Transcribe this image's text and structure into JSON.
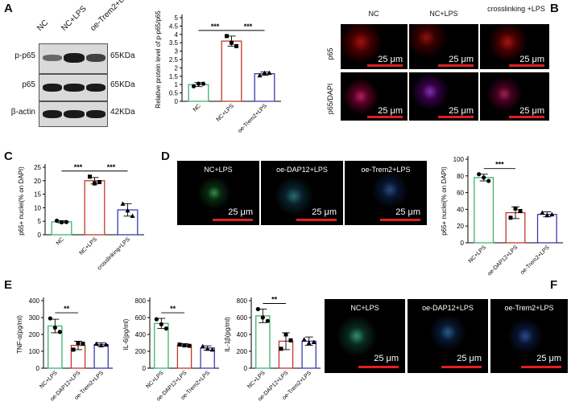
{
  "panels": {
    "A": {
      "letter": "A",
      "blot": {
        "lanes": [
          "NC",
          "NC+LPS",
          "oe-Trem2+LPS"
        ],
        "rows": [
          {
            "label": "p-p65",
            "kda": "65KDa"
          },
          {
            "label": "p65",
            "kda": "65KDa"
          },
          {
            "label": "β-actin",
            "kda": "42KDa"
          }
        ]
      }
    },
    "B": {
      "letter": "B",
      "columns": [
        "NC",
        "NC+LPS",
        "crosslinking +LPS"
      ],
      "rows": [
        "p65",
        "p65/DAPI"
      ],
      "scale": "25 μm"
    },
    "C": {
      "letter": "C"
    },
    "D": {
      "letter": "D",
      "images": [
        "NC+LPS",
        "oe-DAP12+LPS",
        "oe-Trem2+LPS"
      ],
      "scale": "25 μm"
    },
    "E": {
      "letter": "E"
    },
    "F": {
      "letter": "F",
      "images": [
        "NC+LPS",
        "oe-DAP12+LPS",
        "oe-Trem2+LPS"
      ],
      "scale": "25 μm"
    }
  },
  "colors": {
    "green": "#3cb371",
    "red": "#c0392b",
    "blue": "#3b3bb3",
    "scale": "#e02020"
  },
  "chart_data": [
    {
      "id": "A-bar",
      "type": "bar",
      "categories": [
        "NC",
        "NC+LPS",
        "oe-Trem2+LPS"
      ],
      "values": [
        1.0,
        3.6,
        1.65
      ],
      "errors": [
        0.12,
        0.3,
        0.1
      ],
      "points": [
        [
          0.9,
          1.05,
          1.05
        ],
        [
          3.9,
          3.5,
          3.3
        ],
        [
          1.55,
          1.7,
          1.7
        ]
      ],
      "ylabel": "Relative protein level of p-p65/p65",
      "yticks": [
        0,
        0.5,
        1,
        1.5,
        2,
        2.5,
        3,
        3.5,
        4,
        4.5,
        5
      ],
      "ylim": [
        0,
        5
      ],
      "significance": [
        {
          "from": 0,
          "to": 1,
          "label": "***"
        },
        {
          "from": 1,
          "to": 2,
          "label": "***"
        }
      ]
    },
    {
      "id": "C-bar",
      "type": "bar",
      "categories": [
        "NC",
        "NC+LPS",
        "crosslinking+LPS"
      ],
      "values": [
        4.8,
        20.0,
        9.2
      ],
      "errors": [
        0.4,
        1.2,
        2.3
      ],
      "points": [
        [
          5.2,
          4.6,
          4.7
        ],
        [
          21.5,
          19.0,
          19.5
        ],
        [
          11.5,
          9.0,
          7.0
        ]
      ],
      "ylabel": "p65+ nuclei(% on DAPI)",
      "yticks": [
        0,
        5,
        10,
        15,
        20,
        25
      ],
      "ylim": [
        0,
        25
      ],
      "significance": [
        {
          "from": 0,
          "to": 1,
          "label": "***"
        },
        {
          "from": 1,
          "to": 2,
          "label": "***"
        }
      ]
    },
    {
      "id": "D-bar",
      "type": "bar",
      "categories": [
        "NC+LPS",
        "oe-DAP12+LPS",
        "oe-Trem2+LPS"
      ],
      "values": [
        78,
        36,
        34
      ],
      "errors": [
        4,
        7,
        3
      ],
      "points": [
        [
          82,
          78,
          74
        ],
        [
          30,
          41,
          38
        ],
        [
          36,
          33,
          34
        ]
      ],
      "ylabel": "p65+ nuclei(% on DAPI)",
      "yticks": [
        0,
        20,
        40,
        60,
        80,
        100
      ],
      "ylim": [
        0,
        100
      ],
      "significance": [
        {
          "from": 0,
          "to": 1,
          "label": "***"
        }
      ]
    },
    {
      "id": "E-tnf",
      "type": "bar",
      "categories": [
        "NC+LPS",
        "oe-DAP12+LPS",
        "oe-Trem2+LPS"
      ],
      "values": [
        250,
        135,
        140
      ],
      "errors": [
        40,
        25,
        10
      ],
      "points": [
        [
          295,
          240,
          215
        ],
        [
          110,
          150,
          145
        ],
        [
          145,
          135,
          140
        ]
      ],
      "ylabel": "TNF-α(pg/ml)",
      "yticks": [
        0,
        100,
        200,
        300,
        400
      ],
      "ylim": [
        0,
        400
      ],
      "significance": [
        {
          "from": 0,
          "to": 1,
          "label": "**"
        }
      ]
    },
    {
      "id": "E-il6",
      "type": "bar",
      "categories": [
        "NC+LPS",
        "oe-DAP12+LPS",
        "oe-Trem2+LPS"
      ],
      "values": [
        530,
        275,
        240
      ],
      "errors": [
        60,
        15,
        25
      ],
      "points": [
        [
          580,
          520,
          470
        ],
        [
          280,
          270,
          265
        ],
        [
          260,
          230,
          220
        ]
      ],
      "ylabel": "IL-6(pg/ml)",
      "yticks": [
        0,
        200,
        400,
        600,
        800
      ],
      "ylim": [
        0,
        800
      ],
      "significance": [
        {
          "from": 0,
          "to": 1,
          "label": "**"
        }
      ]
    },
    {
      "id": "E-il1b",
      "type": "bar",
      "categories": [
        "NC+LPS",
        "oe-DAP12+LPS",
        "oe-Trem2+LPS"
      ],
      "values": [
        620,
        320,
        320
      ],
      "errors": [
        80,
        100,
        50
      ],
      "points": [
        [
          700,
          600,
          560
        ],
        [
          230,
          400,
          330
        ],
        [
          340,
          300,
          310
        ]
      ],
      "ylabel": "IL-1β(pg/ml)",
      "yticks": [
        0,
        200,
        400,
        600,
        800
      ],
      "ylim": [
        0,
        800
      ],
      "significance": [
        {
          "from": 0,
          "to": 1,
          "label": "**"
        }
      ]
    }
  ]
}
